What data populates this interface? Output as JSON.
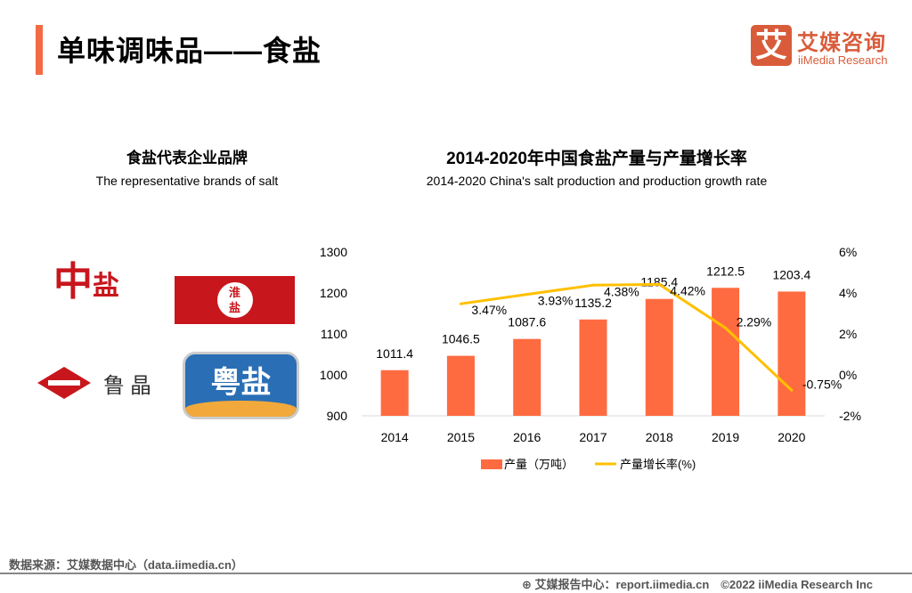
{
  "header": {
    "title": "单味调味品——食盐",
    "logo_mark": "艾",
    "logo_cn": "艾媒咨询",
    "logo_en": "iiMedia Research"
  },
  "left": {
    "title": "食盐代表企业品牌",
    "subtitle": "The representative brands of salt",
    "brands": [
      "中盐",
      "淮盐",
      "鲁晶",
      "粤盐"
    ]
  },
  "chart_data": {
    "type": "bar+line",
    "title": "2014-2020年中国食盐产量与产量增长率",
    "subtitle": "2014-2020 China's salt production and production growth rate",
    "categories": [
      "2014",
      "2015",
      "2016",
      "2017",
      "2018",
      "2019",
      "2020"
    ],
    "series": [
      {
        "name": "产量（万吨）",
        "type": "bar",
        "axis": "left",
        "color": "#FF6B40",
        "values": [
          1011.4,
          1046.5,
          1087.6,
          1135.2,
          1185.4,
          1212.5,
          1203.4
        ],
        "labels": [
          "1011.4",
          "1046.5",
          "1087.6",
          "1135.2",
          "1185.4",
          "1212.5",
          "1203.4"
        ]
      },
      {
        "name": "产量增长率(%)",
        "type": "line",
        "axis": "right",
        "color": "#FFC000",
        "values": [
          null,
          3.47,
          3.93,
          4.38,
          4.42,
          2.29,
          -0.75
        ],
        "labels": [
          "",
          "3.47%",
          "3.93%",
          "4.38%",
          "4.42%",
          "2.29%",
          "-0.75%"
        ]
      }
    ],
    "y_left": {
      "range": [
        900,
        1300
      ],
      "ticks": [
        "900",
        "1000",
        "1100",
        "1200",
        "1300"
      ]
    },
    "y_right": {
      "range": [
        -2,
        6
      ],
      "ticks": [
        "-2%",
        "0%",
        "2%",
        "4%",
        "6%"
      ]
    },
    "grid": false,
    "legend": "bottom"
  },
  "footer": {
    "source": "数据来源：艾媒数据中心（data.iimedia.cn）",
    "report": "艾媒报告中心：report.iimedia.cn　©2022  iiMedia Research  Inc"
  }
}
